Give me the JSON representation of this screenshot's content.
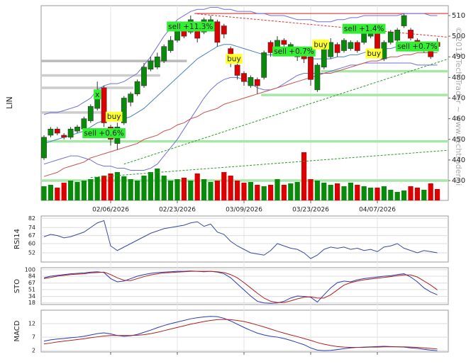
{
  "chart_data": {
    "type": "candlestick",
    "ylabel": "LIN",
    "watermark": "© 2012 Tech Trader ~ www.techtrader.ai",
    "categories": [
      null,
      null,
      null,
      null,
      null,
      null,
      null,
      null,
      null,
      null,
      "02/06/2026",
      null,
      null,
      null,
      null,
      null,
      null,
      null,
      null,
      null,
      "02/23/2026",
      null,
      null,
      null,
      null,
      null,
      null,
      null,
      null,
      null,
      "03/09/2026",
      null,
      null,
      null,
      null,
      null,
      null,
      null,
      null,
      null,
      "03/23/2026",
      null,
      null,
      null,
      null,
      null,
      null,
      null,
      null,
      null,
      "04/07/2026",
      null,
      null,
      null,
      null,
      null,
      null,
      null,
      null,
      null
    ],
    "open": [
      441,
      452,
      455,
      452,
      451,
      454,
      455,
      459,
      465,
      475,
      456,
      448,
      458,
      468,
      472,
      476,
      484,
      485,
      488,
      493,
      498,
      505,
      502,
      506,
      502,
      505,
      507,
      505,
      494,
      486,
      482,
      476,
      479,
      480,
      497,
      492,
      498,
      493,
      490,
      494,
      490,
      474,
      485,
      490,
      496,
      493,
      494,
      497,
      497,
      500,
      502,
      489,
      497,
      498,
      505,
      503,
      498,
      493,
      493,
      497
    ],
    "high": [
      452,
      456,
      456,
      453,
      456,
      457,
      461,
      467,
      478,
      476,
      457,
      458,
      471,
      473,
      479,
      487,
      490,
      492,
      496,
      500,
      506,
      507,
      510,
      507,
      509,
      510,
      508,
      506,
      495,
      487,
      483,
      481,
      480,
      493,
      498,
      500,
      499,
      497,
      495,
      495,
      491,
      487,
      495,
      499,
      497,
      499,
      498,
      498,
      504,
      506,
      503,
      498,
      503,
      504,
      511,
      504,
      499,
      497,
      496,
      499
    ],
    "low": [
      440,
      451,
      452,
      450,
      450,
      453,
      454,
      458,
      464,
      456,
      447,
      445,
      457,
      466,
      471,
      475,
      483,
      484,
      487,
      492,
      497,
      499,
      501,
      497,
      501,
      504,
      495,
      499,
      485,
      479,
      476,
      475,
      472,
      479,
      490,
      491,
      495,
      492,
      488,
      487,
      476,
      473,
      484,
      489,
      490,
      492,
      493,
      492,
      496,
      499,
      493,
      488,
      496,
      497,
      504,
      498,
      495,
      492,
      489,
      494
    ],
    "close": [
      451,
      455,
      453,
      451,
      455,
      456,
      460,
      466,
      470,
      458,
      450,
      456,
      470,
      472,
      478,
      485,
      488,
      490,
      495,
      498,
      505,
      500,
      508,
      499,
      508,
      508,
      497,
      501,
      487,
      481,
      478,
      480,
      476,
      492,
      492,
      498,
      496,
      496,
      494,
      489,
      479,
      486,
      494,
      497,
      492,
      498,
      497,
      493,
      503,
      505,
      494,
      497,
      502,
      503,
      510,
      499,
      496,
      496,
      490,
      495
    ],
    "up_color": "#0a8a0a",
    "down_color": "#dd0000",
    "ylim": [
      420.4,
      514.8
    ],
    "yticks": [
      430,
      440,
      450,
      460,
      470,
      480,
      490,
      500,
      510
    ],
    "volume": {
      "vlim": [
        0,
        100
      ],
      "values": [
        20,
        22,
        18,
        25,
        28,
        26,
        28,
        30,
        33,
        35,
        38,
        40,
        34,
        30,
        28,
        35,
        40,
        45,
        35,
        28,
        30,
        32,
        28,
        38,
        30,
        26,
        28,
        40,
        35,
        28,
        25,
        26,
        22,
        20,
        22,
        30,
        22,
        24,
        26,
        68,
        30,
        28,
        25,
        22,
        24,
        20,
        25,
        22,
        20,
        18,
        18,
        20,
        15,
        12,
        14,
        20,
        18,
        15,
        24,
        16
      ]
    },
    "overlays": [
      {
        "color": "#6f6fd8",
        "values": [
          462,
          463,
          463,
          464,
          465,
          466,
          468,
          470,
          474,
          476,
          477,
          477,
          478,
          480,
          482,
          486,
          490,
          495,
          500,
          504,
          508,
          510,
          512,
          513,
          513,
          514,
          514,
          513,
          513,
          512,
          512,
          512,
          511,
          511,
          510,
          510,
          510,
          509,
          508,
          508,
          508,
          507,
          507,
          507,
          508,
          508,
          509,
          509,
          510,
          510,
          510,
          510,
          510,
          510,
          511,
          511,
          511,
          511,
          510,
          510
        ]
      },
      {
        "color": "#6f6fd8",
        "values": [
          438,
          439,
          440,
          441,
          442,
          442,
          441,
          440,
          438,
          437,
          437,
          436,
          436,
          435,
          435,
          435,
          436,
          438,
          442,
          446,
          450,
          455,
          460,
          465,
          470,
          474,
          477,
          479,
          480,
          480,
          479,
          477,
          475,
          474,
          474,
          475,
          477,
          479,
          481,
          482,
          482,
          482,
          482,
          483,
          484,
          485,
          486,
          486,
          487,
          487,
          487,
          487,
          487,
          487,
          487,
          487,
          486,
          486,
          486,
          486
        ]
      },
      {
        "color": "#4a7fc0",
        "values": [
          448,
          449,
          450,
          451,
          452,
          453,
          454,
          456,
          458,
          459,
          459,
          459,
          460,
          461,
          463,
          465,
          468,
          471,
          474,
          477,
          480,
          483,
          486,
          489,
          491,
          493,
          495,
          496,
          496,
          495,
          494,
          493,
          492,
          491,
          491,
          491,
          491,
          491,
          491,
          490,
          489,
          489,
          489,
          489,
          490,
          490,
          491,
          491,
          492,
          493,
          493,
          494,
          494,
          495,
          495,
          496,
          496,
          496,
          495,
          495
        ]
      },
      {
        "color": "#c85050",
        "values": [
          432,
          433,
          434,
          436,
          437,
          438,
          439,
          441,
          442,
          443,
          444,
          445,
          446,
          447,
          448,
          450,
          451,
          452,
          454,
          455,
          457,
          458,
          460,
          461,
          463,
          464,
          465,
          467,
          468,
          469,
          470,
          471,
          472,
          473,
          474,
          475,
          476,
          477,
          478,
          479,
          480,
          481,
          482,
          482,
          483,
          484,
          485,
          486,
          487,
          488,
          488,
          489,
          490,
          490,
          491,
          491,
          492,
          492,
          492,
          492
        ]
      }
    ],
    "levels": [
      {
        "value": 449,
        "color": "#a6e6a6",
        "from": 0
      },
      {
        "value": 471.5,
        "color": "#a6e6a6",
        "from": 33
      },
      {
        "value": 483,
        "color": "#a6e6a6",
        "from": 42
      },
      {
        "value": 430,
        "color": "#a6e6a6",
        "from": 0
      },
      {
        "value": 488,
        "color": "#bbbbbb",
        "from": 0,
        "to": 21
      },
      {
        "value": 481,
        "color": "#cccccc",
        "from": 0,
        "to": 17
      },
      {
        "value": 475,
        "color": "#cccccc",
        "from": 0,
        "to": 13
      },
      {
        "value": 463,
        "color": "#cccccc",
        "from": 0,
        "to": 9
      },
      {
        "value": 511,
        "color": "#dd3333",
        "from": 23
      }
    ],
    "trendlines": [
      {
        "color": "#2a9a2a",
        "points": [
          [
            7,
            431.5
          ],
          [
            60.8,
            444.7
          ]
        ]
      },
      {
        "color": "#2a9a2a",
        "points": [
          [
            12,
            438
          ],
          [
            60.8,
            489
          ]
        ]
      },
      {
        "color": "#dd3333",
        "points": [
          [
            23,
            510.8
          ],
          [
            60.8,
            499.5
          ]
        ]
      }
    ],
    "annotations": [
      {
        "text": "x",
        "index": 8,
        "value": 471.8,
        "color": "#33ee33"
      },
      {
        "text": "sell +0.6%",
        "index": 9,
        "value": 453,
        "color": "#33ee33"
      },
      {
        "text": "buy",
        "index": 10.5,
        "value": 461,
        "color": "#ffff33"
      },
      {
        "text": "sell +11.3%",
        "index": 22,
        "value": 504.7,
        "color": "#33ee33"
      },
      {
        "text": "buy",
        "index": 28.5,
        "value": 489,
        "color": "#ffff33"
      },
      {
        "text": "sell +0.7%",
        "index": 37.5,
        "value": 492.6,
        "color": "#33ee33"
      },
      {
        "text": "buy",
        "index": 41.5,
        "value": 496,
        "color": "#ffff33"
      },
      {
        "text": "sell +1.4%",
        "index": 48,
        "value": 503.6,
        "color": "#33ee33"
      },
      {
        "text": "buy",
        "index": 49.5,
        "value": 491.6,
        "color": "#ffff33"
      },
      {
        "text": "sell +0.7%",
        "index": 56,
        "value": 495,
        "color": "#33ee33"
      }
    ],
    "indicators": [
      {
        "label": "RSI14",
        "ylim": [
          44,
          84
        ],
        "yticks": [
          52,
          60,
          67,
          74,
          82
        ],
        "series": [
          {
            "color": "#3a4a9a",
            "values": [
              66,
              68,
              67,
              65,
              66,
              68,
              70,
              74,
              78,
              80,
              58,
              54,
              57,
              60,
              63,
              66,
              69,
              71,
              73,
              74,
              75,
              76,
              78,
              79,
              75,
              77,
              70,
              68,
              62,
              58,
              55,
              52,
              51,
              50,
              54,
              60,
              58,
              56,
              55,
              52,
              47,
              50,
              55,
              57,
              56,
              57,
              55,
              56,
              54,
              55,
              53,
              57,
              58,
              60,
              56,
              54,
              52,
              54,
              53,
              52
            ]
          }
        ]
      },
      {
        "label": "STO",
        "ylim": [
          14,
          105
        ],
        "yticks": [
          18,
          34,
          51,
          67,
          84,
          100
        ],
        "series": [
          {
            "color": "#2a3ab0",
            "values": [
              80,
              84,
              86,
              88,
              90,
              91,
              92,
              94,
              95,
              93,
              78,
              70,
              72,
              78,
              84,
              88,
              91,
              93,
              94,
              95,
              96,
              96,
              97,
              96,
              95,
              96,
              94,
              90,
              80,
              65,
              50,
              35,
              22,
              18,
              17,
              18,
              22,
              30,
              35,
              34,
              32,
              20,
              38,
              55,
              68,
              72,
              70,
              75,
              78,
              80,
              82,
              84,
              85,
              88,
              90,
              82,
              70,
              55,
              45,
              38
            ]
          },
          {
            "color": "#b02020",
            "values": [
              78,
              81,
              84,
              86,
              88,
              89,
              90,
              92,
              93,
              94,
              88,
              80,
              74,
              73,
              78,
              83,
              87,
              90,
              92,
              93,
              94,
              95,
              96,
              96,
              96,
              96,
              95,
              93,
              88,
              80,
              68,
              55,
              42,
              30,
              22,
              19,
              19,
              23,
              28,
              32,
              33,
              30,
              30,
              38,
              50,
              62,
              68,
              72,
              75,
              77,
              79,
              81,
              83,
              85,
              87,
              87,
              82,
              72,
              62,
              50
            ]
          }
        ]
      },
      {
        "label": "MACD",
        "ylim": [
          1.5,
          17
        ],
        "yticks": [
          2,
          7,
          12
        ],
        "series": [
          {
            "color": "#2a3ab0",
            "values": [
              5.5,
              6,
              6.3,
              6.5,
              6.8,
              7,
              7.3,
              7.8,
              8.3,
              8.6,
              8.2,
              7.6,
              7.3,
              7.5,
              8,
              8.8,
              9.6,
              10.5,
              11.3,
              12,
              12.6,
              13.2,
              13.8,
              14.2,
              14.5,
              14.7,
              14.6,
              14,
              13,
              11.8,
              10.6,
              9.5,
              8.5,
              7.8,
              7.3,
              7,
              6.5,
              5.8,
              5,
              4.2,
              3,
              2.2,
              2,
              2.1,
              2.4,
              2.7,
              3,
              3.2,
              3.3,
              3.4,
              3.5,
              3.6,
              3.5,
              3.4,
              3.3,
              3,
              2.8,
              2.5,
              2.2,
              2
            ]
          },
          {
            "color": "#b02020",
            "values": [
              4.5,
              4.8,
              5.2,
              5.5,
              5.8,
              6.1,
              6.4,
              6.8,
              7.1,
              7.4,
              7.6,
              7.6,
              7.6,
              7.6,
              7.7,
              7.9,
              8.3,
              8.8,
              9.4,
              10,
              10.6,
              11.2,
              11.8,
              12.3,
              12.8,
              13.2,
              13.5,
              13.6,
              13.5,
              13.2,
              12.8,
              12.2,
              11.5,
              10.8,
              10,
              9.2,
              8.5,
              7.8,
              7.2,
              6.5,
              5.8,
              5,
              4.4,
              3.9,
              3.5,
              3.3,
              3.2,
              3.2,
              3.2,
              3.3,
              3.3,
              3.4,
              3.4,
              3.4,
              3.4,
              3.3,
              3.2,
              3,
              2.8,
              2.6
            ]
          }
        ]
      }
    ]
  }
}
